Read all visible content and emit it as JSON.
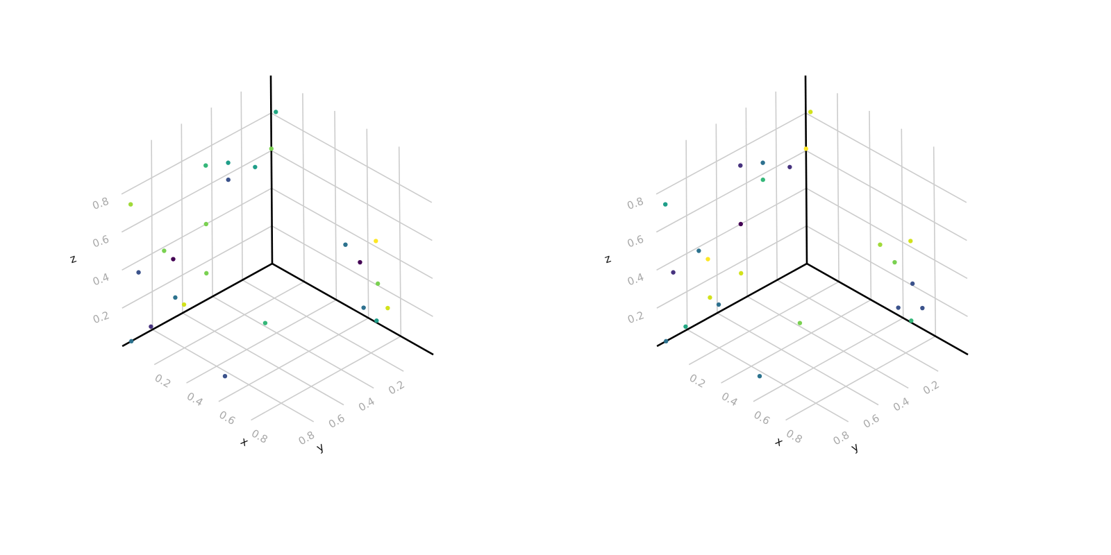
{
  "chart_data": [
    {
      "type": "scatter3d",
      "axes": {
        "x": {
          "label": "x",
          "ticks": [
            "0.2",
            "0.4",
            "0.6",
            "0.8"
          ],
          "range": [
            0,
            1
          ]
        },
        "y": {
          "label": "y",
          "ticks": [
            "0.2",
            "0.4",
            "0.6",
            "0.8"
          ],
          "range": [
            0,
            1
          ]
        },
        "z": {
          "label": "z",
          "ticks": [
            "0.2",
            "0.4",
            "0.6",
            "0.8"
          ],
          "range": [
            0,
            1
          ]
        }
      },
      "grid": true,
      "points": [
        {
          "x": 0.0,
          "y": 0.94,
          "z": 0.0,
          "color": "#2c728e"
        },
        {
          "x": 0.03,
          "y": 0.0,
          "z": 0.82,
          "color": "#23a883"
        },
        {
          "x": 0.0,
          "y": 0.0,
          "z": 0.61,
          "color": "#7ad151"
        },
        {
          "x": 0.0,
          "y": 0.11,
          "z": 0.56,
          "color": "#1f9e89"
        },
        {
          "x": 0.66,
          "y": 0.0,
          "z": 0.21,
          "color": "#7ad151"
        },
        {
          "x": 0.65,
          "y": 0.0,
          "z": 0.43,
          "color": "#fde725"
        },
        {
          "x": 0.46,
          "y": 0.0,
          "z": 0.32,
          "color": "#2c728e"
        },
        {
          "x": 0.55,
          "y": 0.0,
          "z": 0.27,
          "color": "#440154"
        },
        {
          "x": 0.04,
          "y": 0.69,
          "z": 0.14,
          "color": "#2c728e"
        },
        {
          "x": 0.31,
          "y": 0.38,
          "z": 0.0,
          "color": "#35b779"
        },
        {
          "x": 0.57,
          "y": 0.0,
          "z": 0.04,
          "color": "#2d708e"
        },
        {
          "x": 0.72,
          "y": 0.0,
          "z": 0.11,
          "color": "#d2e21b"
        },
        {
          "x": 0.65,
          "y": 0.0,
          "z": 0.01,
          "color": "#1f9e89"
        },
        {
          "x": 0.0,
          "y": 0.29,
          "z": 0.66,
          "color": "#1f9e89"
        },
        {
          "x": 0.0,
          "y": 0.29,
          "z": 0.57,
          "color": "#3b528b"
        },
        {
          "x": 0.0,
          "y": 0.44,
          "z": 0.71,
          "color": "#35b779"
        },
        {
          "x": 0.0,
          "y": 0.44,
          "z": 0.4,
          "color": "#7ad151"
        },
        {
          "x": 0.0,
          "y": 0.44,
          "z": 0.14,
          "color": "#7ad151"
        },
        {
          "x": 0.0,
          "y": 0.72,
          "z": 0.38,
          "color": "#7ad151"
        },
        {
          "x": 0.0,
          "y": 0.66,
          "z": 0.31,
          "color": "#440154"
        },
        {
          "x": 0.0,
          "y": 0.94,
          "z": 0.72,
          "color": "#a0da39"
        },
        {
          "x": 0.0,
          "y": 0.89,
          "z": 0.34,
          "color": "#3b528b"
        },
        {
          "x": 0.0,
          "y": 0.59,
          "z": 0.04,
          "color": "#d2e21b"
        },
        {
          "x": 0.0,
          "y": 0.81,
          "z": 0.02,
          "color": "#46327e"
        },
        {
          "x": 0.48,
          "y": 0.83,
          "z": 0.0,
          "color": "#3b528b"
        }
      ]
    },
    {
      "type": "scatter3d",
      "axes": {
        "x": {
          "label": "x",
          "ticks": [
            "0.2",
            "0.4",
            "0.6",
            "0.8"
          ],
          "range": [
            0,
            1
          ]
        },
        "y": {
          "label": "y",
          "ticks": [
            "0.2",
            "0.4",
            "0.6",
            "0.8"
          ],
          "range": [
            0,
            1
          ]
        },
        "z": {
          "label": "z",
          "ticks": [
            "0.2",
            "0.4",
            "0.6",
            "0.8"
          ],
          "range": [
            0,
            1
          ]
        }
      },
      "grid": true,
      "points": [
        {
          "x": 0.0,
          "y": 0.94,
          "z": 0.0,
          "color": "#2c728e"
        },
        {
          "x": 0.03,
          "y": 0.0,
          "z": 0.82,
          "color": "#d2e21b"
        },
        {
          "x": 0.0,
          "y": 0.0,
          "z": 0.61,
          "color": "#fde725"
        },
        {
          "x": 0.0,
          "y": 0.11,
          "z": 0.56,
          "color": "#46327e"
        },
        {
          "x": 0.66,
          "y": 0.0,
          "z": 0.21,
          "color": "#3b528b"
        },
        {
          "x": 0.65,
          "y": 0.0,
          "z": 0.43,
          "color": "#d2e21b"
        },
        {
          "x": 0.46,
          "y": 0.0,
          "z": 0.32,
          "color": "#a0da39"
        },
        {
          "x": 0.55,
          "y": 0.0,
          "z": 0.27,
          "color": "#7ad151"
        },
        {
          "x": 0.04,
          "y": 0.69,
          "z": 0.14,
          "color": "#d2e21b"
        },
        {
          "x": 0.31,
          "y": 0.38,
          "z": 0.0,
          "color": "#7ad151"
        },
        {
          "x": 0.57,
          "y": 0.0,
          "z": 0.04,
          "color": "#3b528b"
        },
        {
          "x": 0.72,
          "y": 0.0,
          "z": 0.11,
          "color": "#3b528b"
        },
        {
          "x": 0.65,
          "y": 0.0,
          "z": 0.01,
          "color": "#35b779"
        },
        {
          "x": 0.0,
          "y": 0.29,
          "z": 0.66,
          "color": "#2d708e"
        },
        {
          "x": 0.0,
          "y": 0.29,
          "z": 0.57,
          "color": "#35b779"
        },
        {
          "x": 0.0,
          "y": 0.44,
          "z": 0.71,
          "color": "#46327e"
        },
        {
          "x": 0.0,
          "y": 0.44,
          "z": 0.4,
          "color": "#440154"
        },
        {
          "x": 0.0,
          "y": 0.44,
          "z": 0.14,
          "color": "#d2e21b"
        },
        {
          "x": 0.0,
          "y": 0.72,
          "z": 0.38,
          "color": "#2c728e"
        },
        {
          "x": 0.0,
          "y": 0.66,
          "z": 0.31,
          "color": "#fde725"
        },
        {
          "x": 0.0,
          "y": 0.94,
          "z": 0.72,
          "color": "#1f9e89"
        },
        {
          "x": 0.0,
          "y": 0.89,
          "z": 0.34,
          "color": "#46327e"
        },
        {
          "x": 0.0,
          "y": 0.59,
          "z": 0.04,
          "color": "#2d708e"
        },
        {
          "x": 0.0,
          "y": 0.81,
          "z": 0.02,
          "color": "#23a883"
        },
        {
          "x": 0.48,
          "y": 0.83,
          "z": 0.0,
          "color": "#2c728e"
        }
      ]
    }
  ]
}
